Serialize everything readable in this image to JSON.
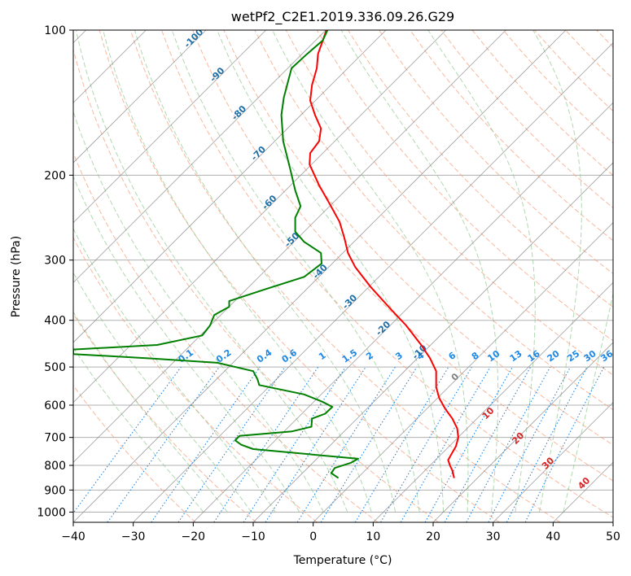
{
  "chart_data": {
    "type": "line",
    "title": "wetPf2_C2E1.2019.336.09.26.G29",
    "xlabel": "Temperature (°C)",
    "ylabel": "Pressure (hPa)",
    "xlim": [
      -40,
      50
    ],
    "ylim": [
      1050,
      100
    ],
    "y_scale": "log",
    "grid": true,
    "x_ticks": [
      "−40",
      "−30",
      "−20",
      "−10",
      "0",
      "10",
      "20",
      "30",
      "40",
      "50"
    ],
    "x_tick_values": [
      -40,
      -30,
      -20,
      -10,
      0,
      10,
      20,
      30,
      40,
      50
    ],
    "y_ticks": [
      "100",
      "200",
      "300",
      "400",
      "500",
      "600",
      "700",
      "800",
      "900",
      "1000"
    ],
    "y_tick_values": [
      100,
      200,
      300,
      400,
      500,
      600,
      700,
      800,
      900,
      1000
    ],
    "colors": {
      "temperature": "#ff0000",
      "dewpoint": "#008000",
      "isotherm": "#808080",
      "dry_adiabat": "#f5a07c",
      "moist_adiabat": "#90c890",
      "mixing_ratio": "#1e88e5",
      "isotherm_label": "#1f6fa8",
      "moist_label": "#d62728"
    },
    "series": [
      {
        "key": "temperature",
        "points": [
          [
            23.5,
            850
          ],
          [
            23.2,
            820
          ],
          [
            22.8,
            800
          ],
          [
            22.5,
            780
          ],
          [
            23.0,
            760
          ],
          [
            23.8,
            730
          ],
          [
            24.2,
            700
          ],
          [
            24.0,
            670
          ],
          [
            23.2,
            640
          ],
          [
            22.0,
            610
          ],
          [
            21.0,
            580
          ],
          [
            20.5,
            550
          ],
          [
            20.5,
            510
          ],
          [
            19.5,
            480
          ],
          [
            18.0,
            450
          ],
          [
            15.5,
            410
          ],
          [
            13.0,
            380
          ],
          [
            9.5,
            340
          ],
          [
            7.0,
            310
          ],
          [
            5.8,
            290
          ],
          [
            5.2,
            270
          ],
          [
            4.4,
            250
          ],
          [
            2.8,
            230
          ],
          [
            1.0,
            210
          ],
          [
            -0.6,
            190
          ],
          [
            -0.5,
            180
          ],
          [
            1.0,
            170
          ],
          [
            1.3,
            160
          ],
          [
            0.3,
            150
          ],
          [
            -0.5,
            140
          ],
          [
            -0.2,
            130
          ],
          [
            0.6,
            120
          ],
          [
            0.8,
            112
          ],
          [
            1.5,
            106
          ],
          [
            2.2,
            100
          ]
        ]
      },
      {
        "key": "dewpoint",
        "points": [
          [
            4.2,
            850
          ],
          [
            3.0,
            830
          ],
          [
            3.6,
            810
          ],
          [
            6.3,
            790
          ],
          [
            7.5,
            775
          ],
          [
            -10.0,
            740
          ],
          [
            -12.0,
            725
          ],
          [
            -13.0,
            710
          ],
          [
            -12.3,
            695
          ],
          [
            -3.5,
            680
          ],
          [
            -0.3,
            665
          ],
          [
            -0.2,
            640
          ],
          [
            2.0,
            625
          ],
          [
            3.2,
            605
          ],
          [
            1.5,
            590
          ],
          [
            -1.5,
            570
          ],
          [
            -9.0,
            545
          ],
          [
            -9.3,
            530
          ],
          [
            -10.0,
            510
          ],
          [
            -16.0,
            490
          ],
          [
            -27.0,
            480
          ],
          [
            -40.0,
            470
          ],
          [
            -40.0,
            460
          ],
          [
            -26.0,
            450
          ],
          [
            -18.5,
            430
          ],
          [
            -17.2,
            410
          ],
          [
            -16.5,
            390
          ],
          [
            -14.0,
            375
          ],
          [
            -14.0,
            365
          ],
          [
            -8.0,
            345
          ],
          [
            -1.5,
            325
          ],
          [
            1.4,
            305
          ],
          [
            1.3,
            290
          ],
          [
            -1.5,
            275
          ],
          [
            -3.0,
            262
          ],
          [
            -3.0,
            245
          ],
          [
            -2.1,
            232
          ],
          [
            -3.0,
            215
          ],
          [
            -3.8,
            195
          ],
          [
            -5.0,
            170
          ],
          [
            -5.3,
            150
          ],
          [
            -4.9,
            138
          ],
          [
            -4.2,
            128
          ],
          [
            -3.6,
            120
          ],
          [
            -1.0,
            112
          ],
          [
            1.6,
            105
          ],
          [
            2.4,
            100
          ]
        ]
      }
    ],
    "isotherm_labels": [
      "-100",
      "-90",
      "-80",
      "-70",
      "-60",
      "-50",
      "-40",
      "-30",
      "-20",
      "-10"
    ],
    "isotherm_label_values": [
      -100,
      -90,
      -80,
      -70,
      -60,
      -50,
      -40,
      -30,
      -20,
      -10
    ],
    "mixing_ratio_labels": [
      "0.1",
      "0.2",
      "0.4",
      "0.6",
      "1",
      "1.5",
      "2",
      "3",
      "4",
      "6",
      "8",
      "10",
      "13",
      "16",
      "20",
      "25",
      "30",
      "36"
    ],
    "mixing_ratio_values": [
      0.1,
      0.2,
      0.4,
      0.6,
      1,
      1.5,
      2,
      3,
      4,
      6,
      8,
      10,
      13,
      16,
      20,
      25,
      30,
      36
    ],
    "moist_adiabat_labels": [
      "0",
      "10",
      "20",
      "30",
      "40"
    ],
    "moist_adiabat_values": [
      0,
      10,
      20,
      30,
      40
    ]
  }
}
